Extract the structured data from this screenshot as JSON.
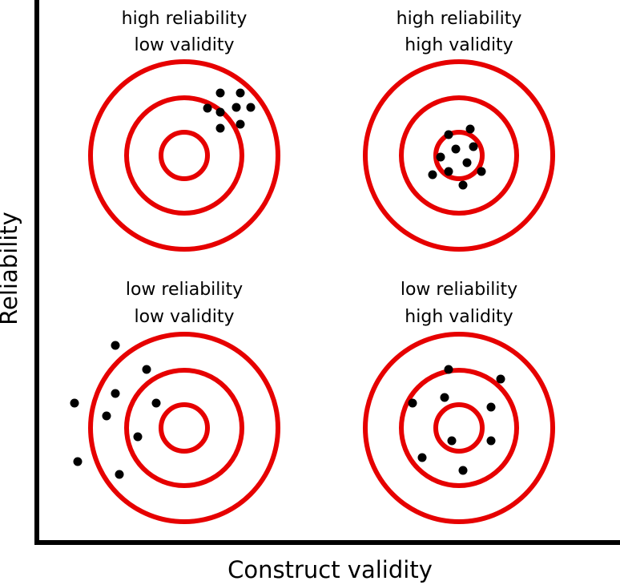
{
  "axes": {
    "x_label": "Construct validity",
    "y_label": "Reliability"
  },
  "colors": {
    "ring": "#e60000",
    "shot": "#000000",
    "axis": "#000000"
  },
  "targets": [
    {
      "id": "hr-lv",
      "label_line1": "high reliability",
      "label_line2": "low validity"
    },
    {
      "id": "hr-hv",
      "label_line1": "high reliability",
      "label_line2": "high validity"
    },
    {
      "id": "lr-lv",
      "label_line1": "low reliability",
      "label_line2": "low validity"
    },
    {
      "id": "lr-hv",
      "label_line1": "low reliability",
      "label_line2": "high validity"
    }
  ]
}
